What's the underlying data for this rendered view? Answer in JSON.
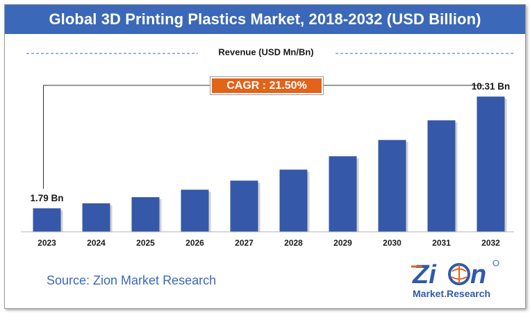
{
  "title": "Global 3D Printing Plastics Market, 2018-2032 (USD Billion)",
  "cagr_label": "CAGR : 21.50%",
  "source": "Source: Zion Market Research",
  "logo": {
    "word": "Zion",
    "tagline": "Market.Research",
    "trademark": "®"
  },
  "colors": {
    "title_bg": "#3b68b8",
    "bar": "#3558a8",
    "cagr_bg": "#e2631a",
    "source": "#3b68b8",
    "dashed": "#3b68b8"
  },
  "chart_data": {
    "type": "bar",
    "title": "Global 3D Printing Plastics Market, 2018-2032 (USD Billion)",
    "ylabel": "Revenue (USD Mn/Bn)",
    "xlabel": "",
    "categories": [
      "2023",
      "2024",
      "2025",
      "2026",
      "2027",
      "2028",
      "2029",
      "2030",
      "2031",
      "2032"
    ],
    "values": [
      1.79,
      2.17,
      2.64,
      3.21,
      3.9,
      4.74,
      5.76,
      7.0,
      8.5,
      10.31
    ],
    "data_labels": [
      {
        "index": 0,
        "text": "1.79 Bn"
      },
      {
        "index": 9,
        "text": "10.31 Bn"
      }
    ],
    "ylim": [
      0,
      10.9
    ],
    "grid": false,
    "legend": "none"
  }
}
